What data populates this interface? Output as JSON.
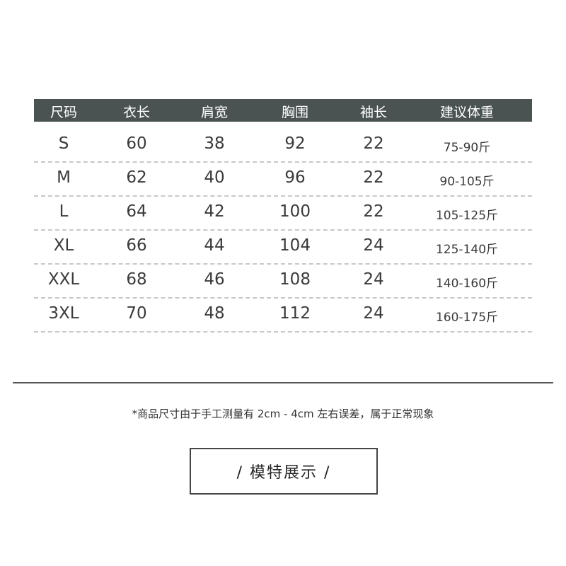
{
  "table": {
    "headers": [
      "尺码",
      "衣长",
      "肩宽",
      "胸围",
      "袖长",
      "建议体重"
    ],
    "rows": [
      [
        "S",
        "60",
        "38",
        "92",
        "22",
        "75-90斤"
      ],
      [
        "M",
        "62",
        "40",
        "96",
        "22",
        "90-105斤"
      ],
      [
        "L",
        "64",
        "42",
        "100",
        "22",
        "105-125斤"
      ],
      [
        "XL",
        "66",
        "44",
        "104",
        "24",
        "125-140斤"
      ],
      [
        "XXL",
        "68",
        "46",
        "108",
        "24",
        "140-160斤"
      ],
      [
        "3XL",
        "70",
        "48",
        "112",
        "24",
        "160-175斤"
      ]
    ]
  },
  "note": "*商品尺寸由于手工测量有 2cm - 4cm 左右误差，属于正常现象",
  "section_title": "/ 模特展示 /",
  "colors": {
    "header_bg": "#4a5352",
    "header_text": "#ffffff"
  }
}
